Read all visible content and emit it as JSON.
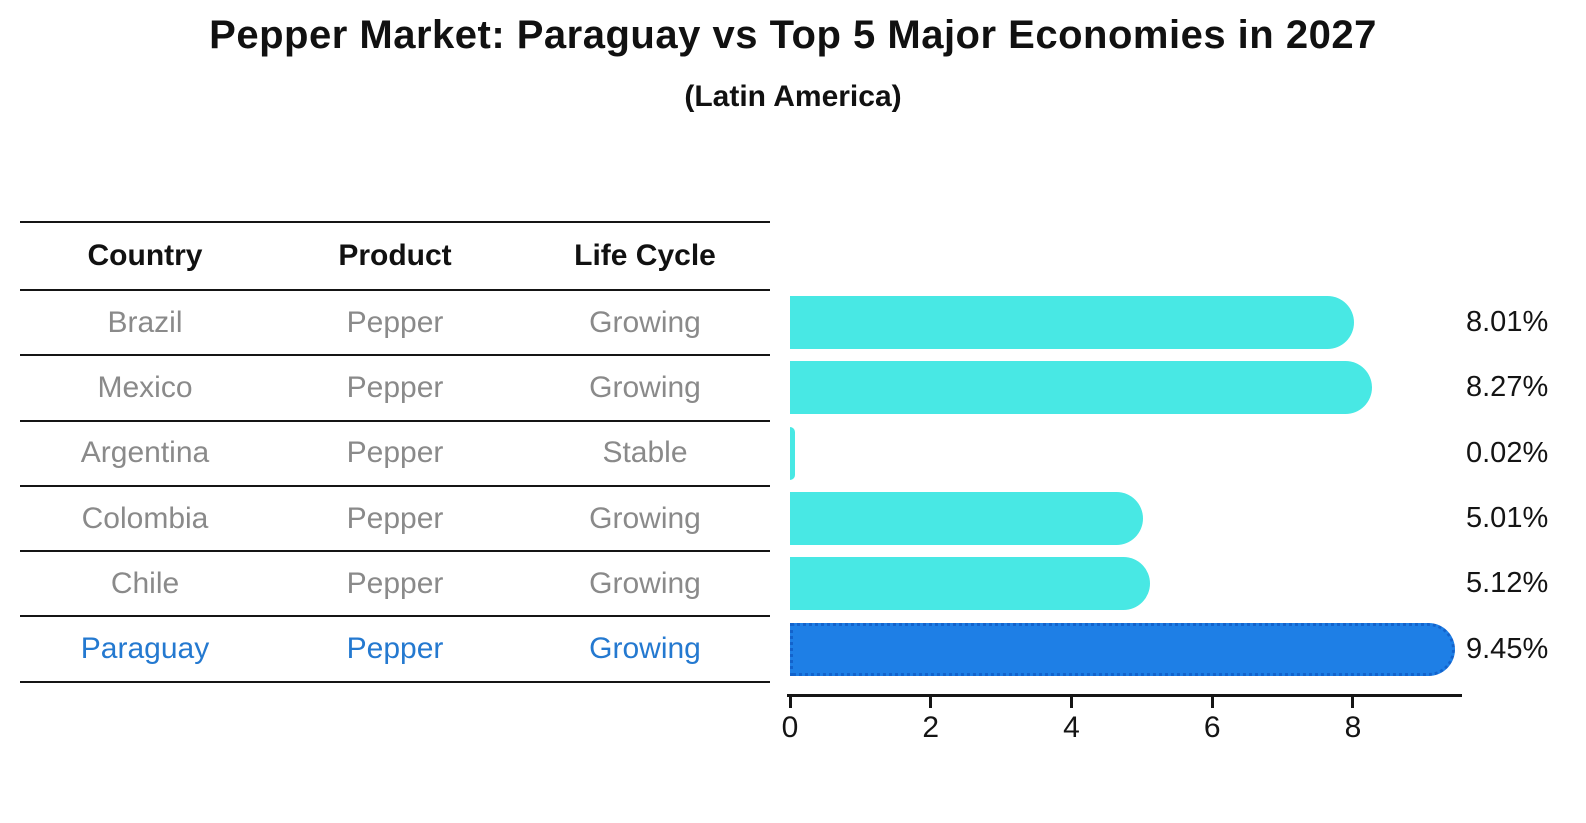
{
  "title": "Pepper Market: Paraguay vs Top 5 Major Economies in 2027",
  "subtitle": "(Latin America)",
  "table": {
    "headers": [
      "Country",
      "Product",
      "Life Cycle"
    ]
  },
  "chart_data": {
    "type": "bar",
    "orientation": "horizontal",
    "title": "Pepper Market: Paraguay vs Top 5 Major Economies in 2027",
    "subtitle": "(Latin America)",
    "xlabel": "",
    "ylabel": "",
    "xlim": [
      0,
      9.55
    ],
    "x_ticks": [
      "0",
      "2",
      "4",
      "6",
      "8"
    ],
    "grid": false,
    "legend": false,
    "rows": [
      {
        "country": "Brazil",
        "product": "Pepper",
        "life_cycle": "Growing",
        "value": 8.01,
        "value_label": "8.01%",
        "highlight": false
      },
      {
        "country": "Mexico",
        "product": "Pepper",
        "life_cycle": "Growing",
        "value": 8.27,
        "value_label": "8.27%",
        "highlight": false
      },
      {
        "country": "Argentina",
        "product": "Pepper",
        "life_cycle": "Stable",
        "value": 0.02,
        "value_label": "0.02%",
        "highlight": false
      },
      {
        "country": "Colombia",
        "product": "Pepper",
        "life_cycle": "Growing",
        "value": 5.01,
        "value_label": "5.01%",
        "highlight": false
      },
      {
        "country": "Chile",
        "product": "Pepper",
        "life_cycle": "Growing",
        "value": 5.12,
        "value_label": "5.12%",
        "highlight": false
      },
      {
        "country": "Paraguay",
        "product": "Pepper",
        "life_cycle": "Growing",
        "value": 9.45,
        "value_label": "9.45%",
        "highlight": true
      }
    ],
    "colors": {
      "bar": "#48e8e4",
      "highlight_bar": "#1e7fe6",
      "highlight_bar_border": "#1363cc",
      "highlight_text": "#2479d0",
      "cell_text": "#8a8a8a",
      "header_text": "#111111",
      "axis": "#151515"
    }
  }
}
